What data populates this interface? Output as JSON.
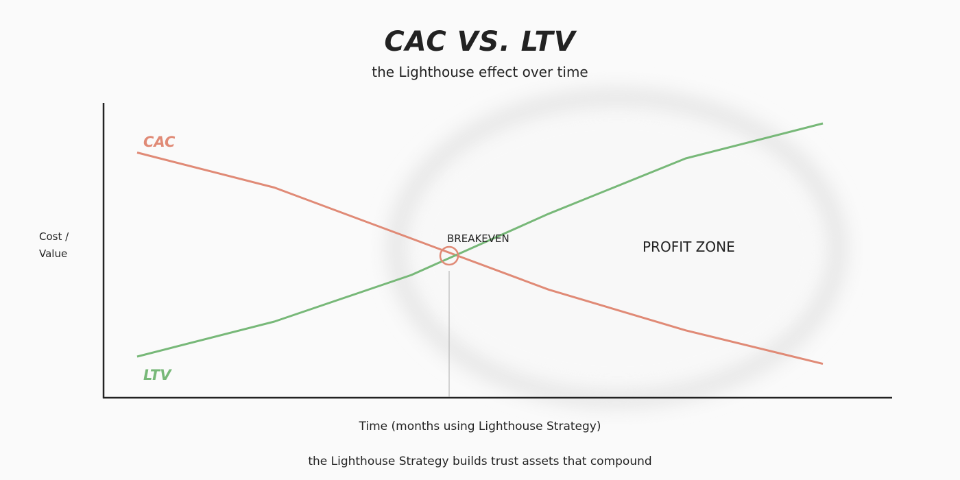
{
  "header": {
    "title": "CAC VS. LTV",
    "subtitle": "the Lighthouse effect over time"
  },
  "axes": {
    "ylabel_line1": "Cost /",
    "ylabel_line2": "Value",
    "xlabel": "Time (months using Lighthouse Strategy)"
  },
  "annotations": {
    "breakeven": "BREAKEVEN",
    "profit_zone": "PROFIT ZONE",
    "caption": "the Lighthouse Strategy builds trust assets that compound"
  },
  "legend": {
    "cac": "CAC",
    "ltv": "LTV"
  },
  "colors": {
    "cac": "#e08a76",
    "ltv": "#77b878",
    "axis": "#222222",
    "background": "#fafafa"
  },
  "chart_data": {
    "type": "line",
    "title": "CAC VS. LTV",
    "subtitle": "the Lighthouse effect over time",
    "xlabel": "Time (months using Lighthouse Strategy)",
    "ylabel": "Cost / Value",
    "x": [
      0,
      1,
      2,
      3,
      4,
      5
    ],
    "series": [
      {
        "name": "CAC",
        "color": "#e08a76",
        "values": [
          90,
          78,
          60.5,
          43,
          29,
          17.5
        ]
      },
      {
        "name": "LTV",
        "color": "#77b878",
        "values": [
          20,
          32,
          48,
          69,
          88,
          100
        ]
      }
    ],
    "ylim": [
      0,
      100
    ],
    "grid": false,
    "ticks_shown": false,
    "annotations": [
      {
        "text": "BREAKEVEN",
        "x": 2.27,
        "y": 53,
        "marker": "circle"
      },
      {
        "text": "PROFIT ZONE",
        "region": "right of breakeven, highlighted by soft ellipse"
      }
    ],
    "legend_position": "inline labels at line starts"
  }
}
